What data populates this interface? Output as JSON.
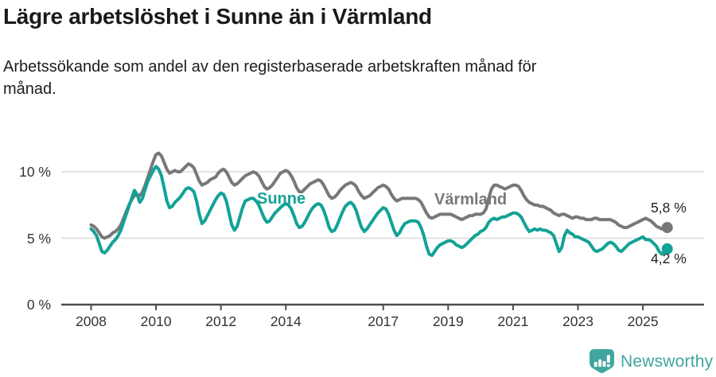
{
  "header": {
    "title": "Lägre arbetslöshet i Sunne än i Värmland",
    "subtitle": "Arbetssökande som andel av den registerbaserade arbetskraften månad för månad."
  },
  "chart_data": {
    "type": "line",
    "unit": "%",
    "frequency": "monthly",
    "x_range": [
      "2008-01",
      "2025-10"
    ],
    "ylim": [
      0,
      12
    ],
    "grid": true,
    "legend_position": "inline-labels",
    "y_ticks": [
      {
        "value": 0,
        "label": "0 %"
      },
      {
        "value": 5,
        "label": "5 %"
      },
      {
        "value": 10,
        "label": "10 %"
      }
    ],
    "x_ticks": [
      {
        "year": 2008,
        "label": "2008"
      },
      {
        "year": 2010,
        "label": "2010"
      },
      {
        "year": 2012,
        "label": "2012"
      },
      {
        "year": 2014,
        "label": "2014"
      },
      {
        "year": 2017,
        "label": "2017"
      },
      {
        "year": 2019,
        "label": "2019"
      },
      {
        "year": 2021,
        "label": "2021"
      },
      {
        "year": 2023,
        "label": "2023"
      },
      {
        "year": 2025,
        "label": "2025"
      }
    ],
    "series": [
      {
        "id": "varmland",
        "name": "Värmland",
        "color": "#787878",
        "end_label": "5,8 %",
        "values": [
          6.0,
          5.9,
          5.7,
          5.4,
          5.1,
          5.0,
          5.1,
          5.2,
          5.4,
          5.5,
          5.7,
          6.0,
          6.5,
          7.0,
          7.5,
          7.9,
          8.2,
          8.3,
          8.2,
          8.5,
          9.0,
          9.6,
          10.2,
          10.8,
          11.3,
          11.4,
          11.2,
          10.7,
          10.2,
          9.9,
          10.0,
          10.1,
          10.0,
          10.0,
          10.2,
          10.4,
          10.6,
          10.5,
          10.3,
          9.8,
          9.3,
          9.0,
          9.1,
          9.2,
          9.4,
          9.5,
          9.6,
          9.9,
          10.1,
          10.2,
          10.0,
          9.6,
          9.2,
          9.0,
          9.1,
          9.3,
          9.5,
          9.7,
          9.8,
          9.9,
          10.0,
          9.9,
          9.7,
          9.3,
          8.9,
          8.7,
          8.8,
          9.0,
          9.3,
          9.6,
          9.9,
          10.0,
          10.1,
          10.0,
          9.7,
          9.3,
          8.8,
          8.5,
          8.5,
          8.7,
          8.9,
          9.1,
          9.2,
          9.3,
          9.4,
          9.3,
          9.0,
          8.6,
          8.2,
          8.0,
          8.1,
          8.3,
          8.6,
          8.8,
          9.0,
          9.1,
          9.2,
          9.1,
          8.9,
          8.5,
          8.2,
          8.0,
          8.1,
          8.2,
          8.4,
          8.6,
          8.8,
          8.9,
          9.0,
          8.9,
          8.7,
          8.3,
          8.0,
          7.8,
          7.9,
          8.0,
          8.0,
          8.0,
          8.0,
          8.0,
          8.0,
          7.9,
          7.7,
          7.3,
          6.9,
          6.6,
          6.5,
          6.6,
          6.7,
          6.8,
          6.8,
          6.8,
          6.8,
          6.8,
          6.7,
          6.6,
          6.5,
          6.4,
          6.5,
          6.6,
          6.7,
          6.7,
          6.8,
          6.8,
          6.8,
          6.9,
          7.2,
          8.0,
          8.7,
          9.0,
          9.0,
          8.9,
          8.8,
          8.7,
          8.8,
          8.9,
          9.0,
          9.0,
          8.9,
          8.6,
          8.2,
          7.9,
          7.7,
          7.6,
          7.5,
          7.5,
          7.4,
          7.4,
          7.3,
          7.2,
          7.1,
          6.9,
          6.8,
          6.7,
          6.8,
          6.8,
          6.7,
          6.6,
          6.5,
          6.6,
          6.6,
          6.5,
          6.5,
          6.4,
          6.4,
          6.4,
          6.5,
          6.5,
          6.4,
          6.4,
          6.4,
          6.4,
          6.4,
          6.3,
          6.2,
          6.0,
          5.9,
          5.8,
          5.8,
          5.9,
          6.0,
          6.1,
          6.2,
          6.3,
          6.4,
          6.5,
          6.4,
          6.3,
          6.1,
          5.9,
          5.8,
          5.7,
          5.7,
          5.8
        ]
      },
      {
        "id": "sunne",
        "name": "Sunne",
        "color": "#13A296",
        "end_label": "4,2 %",
        "values": [
          5.7,
          5.5,
          5.2,
          4.6,
          4.0,
          3.9,
          4.1,
          4.4,
          4.7,
          4.9,
          5.2,
          5.6,
          6.2,
          6.8,
          7.4,
          8.0,
          8.6,
          8.3,
          7.7,
          8.0,
          8.7,
          9.3,
          9.7,
          10.1,
          10.4,
          10.2,
          9.7,
          8.8,
          7.8,
          7.3,
          7.4,
          7.7,
          7.9,
          8.1,
          8.4,
          8.7,
          8.8,
          8.7,
          8.5,
          7.8,
          6.8,
          6.1,
          6.3,
          6.7,
          7.1,
          7.5,
          7.9,
          8.2,
          8.4,
          8.3,
          7.8,
          6.9,
          6.0,
          5.6,
          5.9,
          6.6,
          7.3,
          7.8,
          7.9,
          8.0,
          8.0,
          7.8,
          7.5,
          7.0,
          6.5,
          6.2,
          6.3,
          6.6,
          6.9,
          7.1,
          7.3,
          7.5,
          7.6,
          7.5,
          7.2,
          6.7,
          6.1,
          5.8,
          5.9,
          6.2,
          6.6,
          7.0,
          7.3,
          7.5,
          7.6,
          7.5,
          7.1,
          6.5,
          5.8,
          5.5,
          5.6,
          6.0,
          6.5,
          7.0,
          7.4,
          7.6,
          7.7,
          7.5,
          7.1,
          6.4,
          5.8,
          5.5,
          5.7,
          6.0,
          6.3,
          6.6,
          6.9,
          7.1,
          7.3,
          7.2,
          6.8,
          6.2,
          5.6,
          5.2,
          5.4,
          5.8,
          6.1,
          6.2,
          6.3,
          6.3,
          6.3,
          6.2,
          5.8,
          5.2,
          4.4,
          3.8,
          3.7,
          4.0,
          4.3,
          4.5,
          4.6,
          4.7,
          4.8,
          4.8,
          4.7,
          4.5,
          4.4,
          4.3,
          4.4,
          4.6,
          4.8,
          5.0,
          5.2,
          5.3,
          5.5,
          5.6,
          5.8,
          6.2,
          6.4,
          6.5,
          6.4,
          6.5,
          6.6,
          6.6,
          6.7,
          6.8,
          6.9,
          6.9,
          6.8,
          6.6,
          6.2,
          5.8,
          5.5,
          5.6,
          5.7,
          5.6,
          5.7,
          5.6,
          5.6,
          5.5,
          5.4,
          5.2,
          4.6,
          4.0,
          4.3,
          5.2,
          5.6,
          5.4,
          5.3,
          5.1,
          5.1,
          5.0,
          4.9,
          4.8,
          4.7,
          4.4,
          4.1,
          4.0,
          4.1,
          4.2,
          4.4,
          4.6,
          4.7,
          4.6,
          4.4,
          4.1,
          4.0,
          4.2,
          4.4,
          4.6,
          4.7,
          4.8,
          4.9,
          5.0,
          5.1,
          4.9,
          4.9,
          4.8,
          4.6,
          4.4,
          4.0,
          3.8,
          4.0,
          4.2
        ]
      }
    ]
  },
  "footer": {
    "brand": "Newsworthy",
    "logo_color": "#3FA69F"
  }
}
